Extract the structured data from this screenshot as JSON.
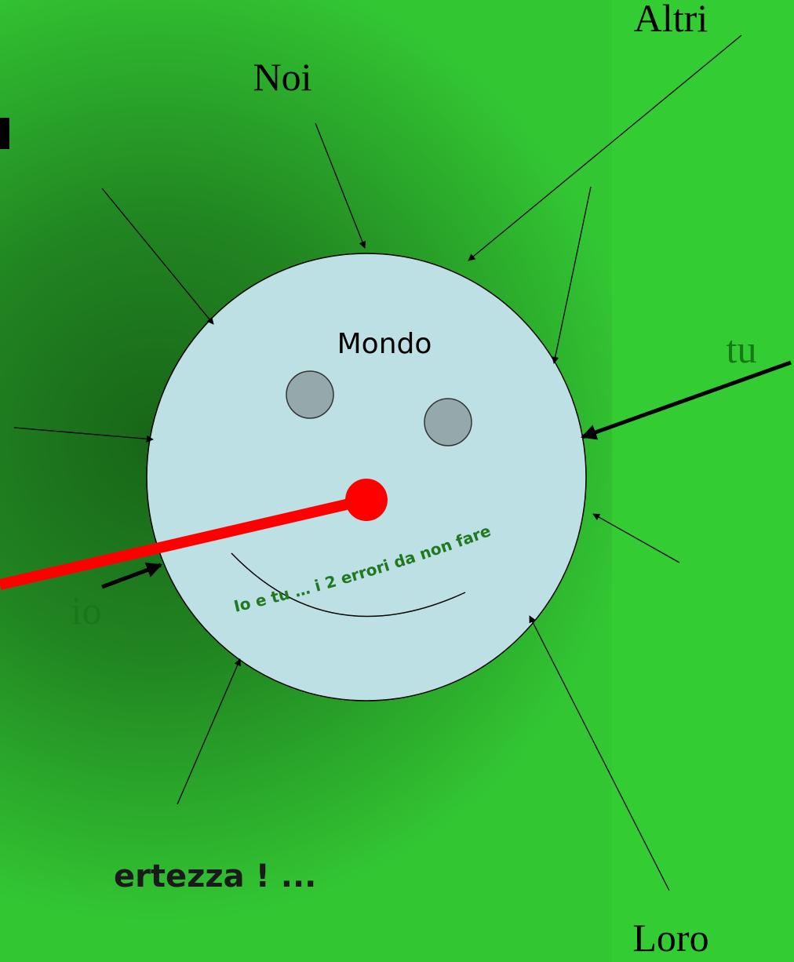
{
  "labels": {
    "altri": "Altri",
    "noi": "Noi",
    "mondo": "Mondo",
    "tu": "tu",
    "io": "io",
    "loro": "Loro",
    "motto": "Io e tu … i 2 errori da non fare",
    "footer": "ertezza ! ..."
  }
}
